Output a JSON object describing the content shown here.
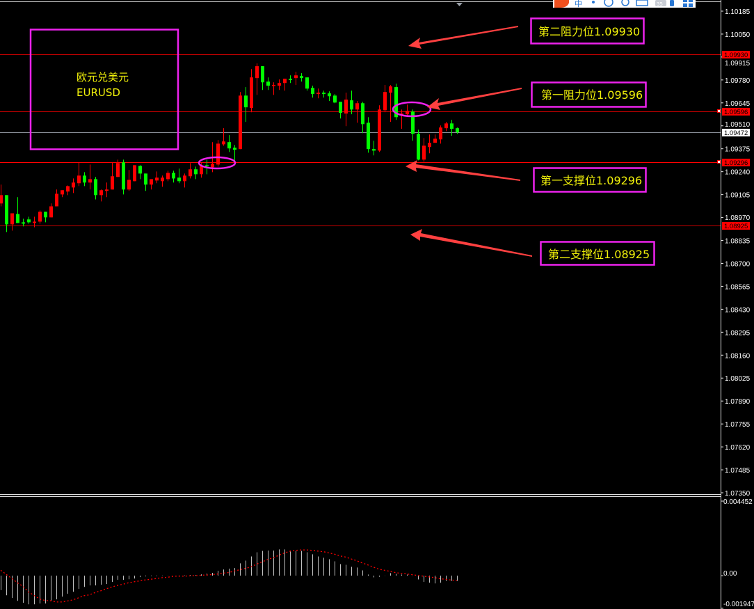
{
  "chart_data": {
    "type": "candlestick",
    "symbol_label": {
      "name_cn": "欧元兑美元",
      "symbol": "EURUSD"
    },
    "price_axis": {
      "ylim": [
        1.0735,
        1.10185
      ],
      "ticks": [
        "1.10185",
        "1.10050",
        "1.09915",
        "1.09780",
        "1.09645",
        "1.09510",
        "1.09375",
        "1.09240",
        "1.09105",
        "1.08970",
        "1.08835",
        "1.08700",
        "1.08565",
        "1.08430",
        "1.08295",
        "1.08160",
        "1.08025",
        "1.07890",
        "1.07755",
        "1.07620",
        "1.07485",
        "1.07350"
      ]
    },
    "bullish_color": "#ff0000",
    "bearish_color": "#00ff00",
    "candles_ohlc": [
      [
        1.09053,
        1.09164,
        1.09036,
        1.09102
      ],
      [
        1.09102,
        1.09102,
        1.08885,
        1.0893
      ],
      [
        1.0893,
        1.08995,
        1.08893,
        1.08995
      ],
      [
        1.08991,
        1.0909,
        1.08938,
        1.08938
      ],
      [
        1.08942,
        1.08963,
        1.08918,
        1.08934
      ],
      [
        1.08959,
        1.08975,
        1.08934,
        1.08942
      ],
      [
        1.08938,
        1.08975,
        1.08913,
        1.08946
      ],
      [
        1.08946,
        1.09012,
        1.08934,
        1.09004
      ],
      [
        1.09004,
        1.09004,
        1.08942,
        1.08971
      ],
      [
        1.08971,
        1.09053,
        1.08971,
        1.09036
      ],
      [
        1.09036,
        1.09135,
        1.09036,
        1.0911
      ],
      [
        1.09106,
        1.09131,
        1.0909,
        1.09131
      ],
      [
        1.09123,
        1.09159,
        1.09102,
        1.09155
      ],
      [
        1.09147,
        1.092,
        1.09114,
        1.09176
      ],
      [
        1.09172,
        1.09295,
        1.09155,
        1.09217
      ],
      [
        1.09217,
        1.09237,
        1.09155,
        1.09176
      ],
      [
        1.09176,
        1.09282,
        1.09135,
        1.09196
      ],
      [
        1.09196,
        1.09209,
        1.09077,
        1.09102
      ],
      [
        1.09102,
        1.09135,
        1.09065,
        1.09131
      ],
      [
        1.09127,
        1.09176,
        1.0909,
        1.09135
      ],
      [
        1.09135,
        1.09295,
        1.09135,
        1.09213
      ],
      [
        1.09209,
        1.09311,
        1.09209,
        1.09291
      ],
      [
        1.09295,
        1.09311,
        1.09106,
        1.09135
      ],
      [
        1.09135,
        1.0925,
        1.09127,
        1.09192
      ],
      [
        1.09184,
        1.09278,
        1.09184,
        1.09278
      ],
      [
        1.09274,
        1.09278,
        1.09196,
        1.09229
      ],
      [
        1.09229,
        1.09229,
        1.09127,
        1.09164
      ],
      [
        1.09164,
        1.09196,
        1.09135,
        1.09196
      ],
      [
        1.09188,
        1.09241,
        1.09172,
        1.09205
      ],
      [
        1.09184,
        1.09217,
        1.09151,
        1.09205
      ],
      [
        1.09196,
        1.09246,
        1.09184,
        1.09233
      ],
      [
        1.09233,
        1.09246,
        1.09176,
        1.092
      ],
      [
        1.09205,
        1.09258,
        1.09172,
        1.09184
      ],
      [
        1.09184,
        1.09229,
        1.09147,
        1.09217
      ],
      [
        1.09213,
        1.09291,
        1.092,
        1.09254
      ],
      [
        1.09254,
        1.0927,
        1.09196,
        1.09225
      ],
      [
        1.09225,
        1.09291,
        1.09205,
        1.09274
      ],
      [
        1.09278,
        1.09311,
        1.09225,
        1.09274
      ],
      [
        1.09266,
        1.09414,
        1.09237,
        1.09287
      ],
      [
        1.09282,
        1.09426,
        1.0927,
        1.09405
      ],
      [
        1.09401,
        1.09496,
        1.09393,
        1.09418
      ],
      [
        1.09414,
        1.09455,
        1.09356,
        1.09377
      ],
      [
        1.09381,
        1.09397,
        1.09278,
        1.09369
      ],
      [
        1.09373,
        1.09709,
        1.09373,
        1.09688
      ],
      [
        1.09688,
        1.09738,
        1.09533,
        1.09619
      ],
      [
        1.09615,
        1.09844,
        1.0959,
        1.09795
      ],
      [
        1.09791,
        1.09877,
        1.09692,
        1.09861
      ],
      [
        1.09861,
        1.09861,
        1.09721,
        1.09766
      ],
      [
        1.0977,
        1.09795,
        1.09721,
        1.09746
      ],
      [
        1.09746,
        1.09766,
        1.09692,
        1.0975
      ],
      [
        1.09746,
        1.09783,
        1.09721,
        1.09762
      ],
      [
        1.09762,
        1.09787,
        1.09717,
        1.09787
      ],
      [
        1.09787,
        1.09807,
        1.09762,
        1.09779
      ],
      [
        1.09791,
        1.09828,
        1.0975,
        1.09807
      ],
      [
        1.09803,
        1.0982,
        1.0977,
        1.09791
      ],
      [
        1.09795,
        1.09795,
        1.09717,
        1.09729
      ],
      [
        1.09733,
        1.09746,
        1.09676,
        1.09697
      ],
      [
        1.09697,
        1.09729,
        1.09672,
        1.09705
      ],
      [
        1.09705,
        1.09717,
        1.09676,
        1.09697
      ],
      [
        1.09701,
        1.09713,
        1.09656,
        1.09684
      ],
      [
        1.09688,
        1.09697,
        1.09643,
        1.09647
      ],
      [
        1.09651,
        1.09651,
        1.09553,
        1.09586
      ],
      [
        1.09582,
        1.09705,
        1.09508,
        1.09664
      ],
      [
        1.0966,
        1.09717,
        1.09578,
        1.09606
      ],
      [
        1.09606,
        1.09656,
        1.09528,
        1.09643
      ],
      [
        1.09643,
        1.09651,
        1.09467,
        1.0952
      ],
      [
        1.09528,
        1.09561,
        1.09352,
        1.09373
      ],
      [
        1.09373,
        1.09422,
        1.09336,
        1.09364
      ],
      [
        1.09364,
        1.09631,
        1.09356,
        1.09606
      ],
      [
        1.09602,
        1.0975,
        1.0959,
        1.09709
      ],
      [
        1.09705,
        1.0975,
        1.09533,
        1.09742
      ],
      [
        1.09738,
        1.09758,
        1.09545,
        1.09561
      ],
      [
        1.09574,
        1.09606,
        1.09492,
        1.09582
      ],
      [
        1.09578,
        1.09635,
        1.09569,
        1.09598
      ],
      [
        1.09594,
        1.09606,
        1.09422,
        1.09463
      ],
      [
        1.09463,
        1.09487,
        1.09307,
        1.09311
      ],
      [
        1.09311,
        1.09438,
        1.09299,
        1.09393
      ],
      [
        1.09385,
        1.09459,
        1.09348,
        1.0941
      ],
      [
        1.0941,
        1.09459,
        1.0941,
        1.09434
      ],
      [
        1.0943,
        1.09512,
        1.09405,
        1.095
      ],
      [
        1.09496,
        1.09533,
        1.09479,
        1.09524
      ],
      [
        1.09524,
        1.09545,
        1.09451,
        1.09492
      ],
      [
        1.09496,
        1.095,
        1.09463,
        1.09472
      ]
    ],
    "levels": [
      {
        "price": 1.0993,
        "tag": "1.09930",
        "color": "#c80000",
        "tag_bg": "#ff0000"
      },
      {
        "price": 1.09596,
        "tag": "1.09596",
        "color": "#c80000",
        "tag_bg": "#ff0000"
      },
      {
        "price": 1.09472,
        "tag": "1.09472",
        "color": "#8a8f99",
        "tag_bg": "#ffffff"
      },
      {
        "price": 1.09296,
        "tag": "1.09296",
        "color": "#ff0000",
        "tag_bg": "#ff0000"
      },
      {
        "price": 1.08925,
        "tag": "1.08925",
        "color": "#c80000",
        "tag_bg": "#ff0000"
      }
    ],
    "annotations": [
      "第二阻力位1.09930",
      "第一阻力位1.09596",
      "第一支撑位1.09296",
      "第二支撑位1.08925"
    ],
    "annotation_color": "#ee22ee",
    "arrow_color": "#ff4040",
    "indicator": {
      "ylim": [
        -0.001947,
        0.004452
      ],
      "ticks": [
        "0.004452",
        "0.00",
        "-0.001947"
      ],
      "histogram_color": "#c0c0c0",
      "signal_color": "#ff0000",
      "histogram": [
        -0.00086,
        -0.00117,
        -0.00133,
        -0.0015,
        -0.00162,
        -0.00171,
        -0.00171,
        -0.00166,
        -0.00166,
        -0.0015,
        -0.00141,
        -0.00125,
        -0.00108,
        -0.00096,
        -0.00079,
        -0.00067,
        -0.00058,
        -0.00058,
        -0.00054,
        -0.0005,
        -0.00037,
        -0.00025,
        -0.00025,
        -0.00021,
        -0.00017,
        -8e-05,
        -4e-05,
        -3e-05,
        -3e-05,
        -2e-05,
        -1e-05,
        0.0,
        1e-05,
        2e-05,
        4e-05,
        4e-05,
        8e-05,
        0.00012,
        0.00017,
        0.00029,
        0.00037,
        0.00042,
        0.00046,
        0.00074,
        0.0009,
        0.00115,
        0.0014,
        0.00148,
        0.0015,
        0.0015,
        0.00157,
        0.00157,
        0.0015,
        0.00148,
        0.00148,
        0.0014,
        0.00128,
        0.00115,
        0.00107,
        0.00098,
        0.00086,
        0.00069,
        0.00065,
        0.00053,
        0.00049,
        0.00032,
        7e-05,
        -0.0001,
        -6e-05,
        -1e-05,
        0.00015,
        0.00011,
        7e-05,
        7e-05,
        -1e-05,
        -0.00022,
        -0.00037,
        -0.00042,
        -0.00046,
        -0.00042,
        -0.00031,
        -0.00031,
        -0.00031
      ],
      "signal": [
        0.00032,
        8e-05,
        -0.00017,
        -0.00042,
        -0.00064,
        -0.00097,
        -0.00118,
        -0.00139,
        -0.00148,
        -0.0015,
        -0.00157,
        -0.00157,
        -0.00151,
        -0.00144,
        -0.00132,
        -0.00119,
        -0.00114,
        -0.001,
        -0.0009,
        -0.00078,
        -0.00067,
        -0.00058,
        -0.00051,
        -0.00042,
        -0.00036,
        -0.00031,
        -0.00025,
        -0.00021,
        -0.00017,
        -0.00012,
        -0.0001,
        -3e-05,
        -3e-05,
        -3e-05,
        -1e-05,
        0.0,
        3e-05,
        4e-05,
        7e-05,
        0.0001,
        0.00015,
        0.00019,
        0.00028,
        0.00036,
        0.00044,
        0.00053,
        0.00069,
        0.00083,
        0.00097,
        0.00108,
        0.00122,
        0.00136,
        0.00146,
        0.00151,
        0.00154,
        0.00154,
        0.00151,
        0.00147,
        0.00143,
        0.00136,
        0.00128,
        0.00118,
        0.00111,
        0.001,
        0.00089,
        0.00076,
        0.00064,
        0.00051,
        0.00039,
        0.00032,
        0.00026,
        0.00018,
        0.00014,
        0.0001,
        6e-05,
        1e-05,
        -3e-05,
        -7e-05,
        -0.00012,
        -0.00018,
        -0.00022,
        -0.00026,
        -0.00028
      ]
    }
  },
  "taskbar_icons": [
    "sogou-ime-icon",
    "chinese-input-mode-icon",
    "punctuation-icon",
    "emoji-icon",
    "voice-input-icon",
    "keyboard-icon",
    "battery-icon",
    "phone-icon",
    "grid-menu-icon"
  ],
  "taskbar": {
    "battery_text": "35",
    "input_mode": "中"
  }
}
